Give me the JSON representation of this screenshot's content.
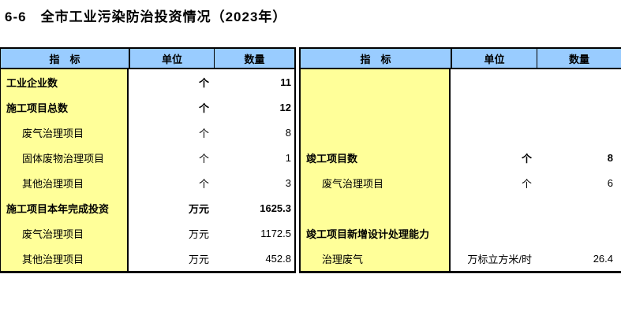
{
  "title": {
    "number": "6-6",
    "text": "全市工业污染防治投资情况（2023年）"
  },
  "headers": {
    "indicator": "指　标",
    "unit": "单位",
    "quantity": "数量"
  },
  "colors": {
    "header_bg": "#99CCFF",
    "indicator_bg": "#FFFF99",
    "border": "#000000"
  },
  "left_table": {
    "rows": [
      {
        "label": "工业企业数",
        "unit": "个",
        "value": "11"
      },
      {
        "label": "施工项目总数",
        "unit": "个",
        "value": "12"
      },
      {
        "label": "废气治理项目",
        "unit": "个",
        "value": "8"
      },
      {
        "label": "固体废物治理项目",
        "unit": "个",
        "value": "1"
      },
      {
        "label": "其他治理项目",
        "unit": "个",
        "value": "3"
      },
      {
        "label": "施工项目本年完成投资",
        "unit": "万元",
        "value": "1625.3"
      },
      {
        "label": "废气治理项目",
        "unit": "万元",
        "value": "1172.5"
      },
      {
        "label": "其他治理项目",
        "unit": "万元",
        "value": "452.8"
      }
    ]
  },
  "right_table": {
    "rows": [
      {
        "label": "",
        "unit": "",
        "value": ""
      },
      {
        "label": "",
        "unit": "",
        "value": ""
      },
      {
        "label": "",
        "unit": "",
        "value": ""
      },
      {
        "label": "竣工项目数",
        "unit": "个",
        "value": "8"
      },
      {
        "label": "废气治理项目",
        "unit": "个",
        "value": "6"
      },
      {
        "label": "",
        "unit": "",
        "value": ""
      },
      {
        "label": "竣工项目新增设计处理能力",
        "unit": "",
        "value": ""
      },
      {
        "label": "治理废气",
        "unit": "万标立方米/时",
        "value": "26.4"
      }
    ]
  }
}
